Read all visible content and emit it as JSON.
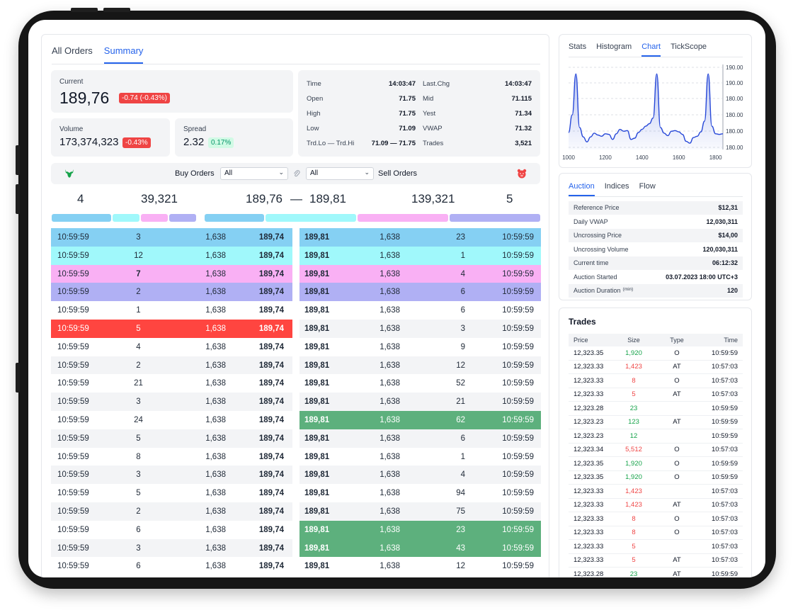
{
  "main_tabs": [
    "All Orders",
    "Summary"
  ],
  "current": {
    "label": "Current",
    "value": "189,76",
    "change": "-0.74 (-0.43%)"
  },
  "volume": {
    "label": "Volume",
    "value": "173,374,323",
    "change": "-0.43%"
  },
  "spread": {
    "label": "Spread",
    "value": "2.32",
    "change": "0.17%"
  },
  "stats_left": [
    [
      "Time",
      "14:03:47"
    ],
    [
      "Open",
      "71.75"
    ],
    [
      "High",
      "71.75"
    ],
    [
      "Low",
      "71.09"
    ],
    [
      "Trd.Lo — Trd.Hi",
      "71.09 — 71.75"
    ]
  ],
  "stats_right": [
    [
      "Last.Chg",
      "14:03:47"
    ],
    [
      "Mid",
      "71.115"
    ],
    [
      "Yest",
      "71.34"
    ],
    [
      "VWAP",
      "71.32"
    ],
    [
      "Trades",
      "3,521"
    ]
  ],
  "filters": {
    "buy_label": "Buy Orders",
    "buy_value": "All",
    "sell_value": "All",
    "sell_label": "Sell Orders"
  },
  "summary": {
    "buy_count": "4",
    "buy_qty": "39,321",
    "bid": "189,76",
    "dash": "—",
    "ask": "189,81",
    "sell_qty": "139,321",
    "sell_count": "5"
  },
  "colors": {
    "blue": "#85d0f3",
    "cyan": "#a0f8fb",
    "pink": "#f9b0f4",
    "purple": "#b0b0f4",
    "red": "#ff4540",
    "green": "#5db07d"
  },
  "buy_orders": [
    {
      "time": "10:59:59",
      "qty": "3",
      "size": "1,638",
      "price": "189,74",
      "hl": "blue"
    },
    {
      "time": "10:59:59",
      "qty": "12",
      "size": "1,638",
      "price": "189,74",
      "hl": "cyan"
    },
    {
      "time": "10:59:59",
      "qty": "7",
      "size": "1,638",
      "price": "189,74",
      "hl": "pink"
    },
    {
      "time": "10:59:59",
      "qty": "2",
      "size": "1,638",
      "price": "189,74",
      "hl": "purple"
    },
    {
      "time": "10:59:59",
      "qty": "1",
      "size": "1,638",
      "price": "189,74",
      "hl": ""
    },
    {
      "time": "10:59:59",
      "qty": "5",
      "size": "1,638",
      "price": "189,74",
      "hl": "red"
    },
    {
      "time": "10:59:59",
      "qty": "4",
      "size": "1,638",
      "price": "189,74",
      "hl": ""
    },
    {
      "time": "10:59:59",
      "qty": "2",
      "size": "1,638",
      "price": "189,74",
      "hl": ""
    },
    {
      "time": "10:59:59",
      "qty": "21",
      "size": "1,638",
      "price": "189,74",
      "hl": ""
    },
    {
      "time": "10:59:59",
      "qty": "3",
      "size": "1,638",
      "price": "189,74",
      "hl": ""
    },
    {
      "time": "10:59:59",
      "qty": "24",
      "size": "1,638",
      "price": "189,74",
      "hl": ""
    },
    {
      "time": "10:59:59",
      "qty": "5",
      "size": "1,638",
      "price": "189,74",
      "hl": ""
    },
    {
      "time": "10:59:59",
      "qty": "8",
      "size": "1,638",
      "price": "189,74",
      "hl": ""
    },
    {
      "time": "10:59:59",
      "qty": "3",
      "size": "1,638",
      "price": "189,74",
      "hl": ""
    },
    {
      "time": "10:59:59",
      "qty": "5",
      "size": "1,638",
      "price": "189,74",
      "hl": ""
    },
    {
      "time": "10:59:59",
      "qty": "2",
      "size": "1,638",
      "price": "189,74",
      "hl": ""
    },
    {
      "time": "10:59:59",
      "qty": "6",
      "size": "1,638",
      "price": "189,74",
      "hl": ""
    },
    {
      "time": "10:59:59",
      "qty": "3",
      "size": "1,638",
      "price": "189,74",
      "hl": ""
    },
    {
      "time": "10:59:59",
      "qty": "6",
      "size": "1,638",
      "price": "189,74",
      "hl": ""
    }
  ],
  "sell_orders": [
    {
      "price": "189,81",
      "size": "1,638",
      "qty": "23",
      "time": "10:59:59",
      "hl": "blue"
    },
    {
      "price": "189,81",
      "size": "1,638",
      "qty": "1",
      "time": "10:59:59",
      "hl": "cyan"
    },
    {
      "price": "189,81",
      "size": "1,638",
      "qty": "4",
      "time": "10:59:59",
      "hl": "pink"
    },
    {
      "price": "189,81",
      "size": "1,638",
      "qty": "6",
      "time": "10:59:59",
      "hl": "purple"
    },
    {
      "price": "189,81",
      "size": "1,638",
      "qty": "6",
      "time": "10:59:59",
      "hl": ""
    },
    {
      "price": "189,81",
      "size": "1,638",
      "qty": "3",
      "time": "10:59:59",
      "hl": ""
    },
    {
      "price": "189,81",
      "size": "1,638",
      "qty": "9",
      "time": "10:59:59",
      "hl": ""
    },
    {
      "price": "189,81",
      "size": "1,638",
      "qty": "12",
      "time": "10:59:59",
      "hl": ""
    },
    {
      "price": "189,81",
      "size": "1,638",
      "qty": "52",
      "time": "10:59:59",
      "hl": ""
    },
    {
      "price": "189,81",
      "size": "1,638",
      "qty": "21",
      "time": "10:59:59",
      "hl": ""
    },
    {
      "price": "189,81",
      "size": "1,638",
      "qty": "62",
      "time": "10:59:59",
      "hl": "green"
    },
    {
      "price": "189,81",
      "size": "1,638",
      "qty": "6",
      "time": "10:59:59",
      "hl": ""
    },
    {
      "price": "189,81",
      "size": "1,638",
      "qty": "1",
      "time": "10:59:59",
      "hl": ""
    },
    {
      "price": "189,81",
      "size": "1,638",
      "qty": "4",
      "time": "10:59:59",
      "hl": ""
    },
    {
      "price": "189,81",
      "size": "1,638",
      "qty": "94",
      "time": "10:59:59",
      "hl": ""
    },
    {
      "price": "189,81",
      "size": "1,638",
      "qty": "75",
      "time": "10:59:59",
      "hl": ""
    },
    {
      "price": "189,81",
      "size": "1,638",
      "qty": "23",
      "time": "10:59:59",
      "hl": "green"
    },
    {
      "price": "189,81",
      "size": "1,638",
      "qty": "43",
      "time": "10:59:59",
      "hl": "green"
    },
    {
      "price": "189,81",
      "size": "1,638",
      "qty": "12",
      "time": "10:59:59",
      "hl": ""
    }
  ],
  "chart_tabs": [
    "Stats",
    "Histogram",
    "Chart",
    "TickScope"
  ],
  "chart_data": {
    "type": "area",
    "x": [
      1000,
      1020,
      1040,
      1060,
      1080,
      1100,
      1120,
      1140,
      1160,
      1180,
      1200,
      1220,
      1240,
      1260,
      1280,
      1300,
      1320,
      1340,
      1360,
      1380,
      1400,
      1420,
      1440,
      1460,
      1480,
      1500,
      1520,
      1540,
      1560,
      1580,
      1600,
      1620,
      1640,
      1660,
      1680,
      1700,
      1720,
      1740,
      1760,
      1780,
      1800,
      1820,
      1840
    ],
    "values": [
      180.7,
      183.5,
      190.0,
      181.5,
      180.0,
      179.2,
      180.0,
      180.6,
      180.3,
      180.1,
      180.5,
      180.4,
      179.6,
      180.5,
      181.2,
      180.9,
      181.0,
      179.6,
      179.8,
      180.7,
      181.2,
      181.7,
      182.1,
      183.0,
      190.0,
      181.5,
      180.6,
      180.2,
      180.9,
      181.0,
      180.8,
      180.4,
      179.3,
      179.0,
      179.9,
      180.1,
      180.8,
      182.5,
      190.0,
      181.7,
      180.5,
      180.4,
      180.5
    ],
    "xticks": [
      "1000",
      "1200",
      "1400",
      "1600",
      "1800"
    ],
    "yticks": [
      "190.00",
      "190.00",
      "180.00",
      "180.00",
      "180.00",
      "180.00"
    ],
    "ylim": [
      178,
      191.5
    ],
    "grid": true
  },
  "auction_tabs": [
    "Auction",
    "Indices",
    "Flow"
  ],
  "auction": [
    [
      "Reference Price",
      "$12,31"
    ],
    [
      "Daily VWAP",
      "12,030,311"
    ],
    [
      "Uncrossing Price",
      "$14,00"
    ],
    [
      "Uncrossing Volume",
      "120,030,311"
    ],
    [
      "Current time",
      "06:12:32"
    ],
    [
      "Auction Started",
      "03.07.2023 18:00 UTC+3"
    ],
    [
      "Auction Duration",
      "120"
    ]
  ],
  "auction_duration_unit": "(min)",
  "trades_title": "Trades",
  "trades_head": [
    "Price",
    "Size",
    "Type",
    "Time"
  ],
  "trades": [
    {
      "price": "12,323.35",
      "size": "1,920",
      "dir": "up",
      "type": "O",
      "time": "10:59:59"
    },
    {
      "price": "12,323.33",
      "size": "1,423",
      "dir": "down",
      "type": "AT",
      "time": "10:57:03"
    },
    {
      "price": "12,323.33",
      "size": "8",
      "dir": "down",
      "type": "O",
      "time": "10:57:03"
    },
    {
      "price": "12,323.33",
      "size": "5",
      "dir": "down",
      "type": "AT",
      "time": "10:57:03"
    },
    {
      "price": "12,323.28",
      "size": "23",
      "dir": "up",
      "type": "",
      "time": "10:59:59"
    },
    {
      "price": "12,323.23",
      "size": "123",
      "dir": "up",
      "type": "AT",
      "time": "10:59:59"
    },
    {
      "price": "12,323.23",
      "size": "12",
      "dir": "up",
      "type": "",
      "time": "10:59:59"
    },
    {
      "price": "12,323.34",
      "size": "5,512",
      "dir": "down",
      "type": "O",
      "time": "10:57:03"
    },
    {
      "price": "12,323.35",
      "size": "1,920",
      "dir": "up",
      "type": "O",
      "time": "10:59:59"
    },
    {
      "price": "12,323.35",
      "size": "1,920",
      "dir": "up",
      "type": "O",
      "time": "10:59:59"
    },
    {
      "price": "12,323.33",
      "size": "1,423",
      "dir": "down",
      "type": "",
      "time": "10:57:03"
    },
    {
      "price": "12,323.33",
      "size": "1,423",
      "dir": "down",
      "type": "AT",
      "time": "10:57:03"
    },
    {
      "price": "12,323.33",
      "size": "8",
      "dir": "down",
      "type": "O",
      "time": "10:57:03"
    },
    {
      "price": "12,323.33",
      "size": "8",
      "dir": "down",
      "type": "O",
      "time": "10:57:03"
    },
    {
      "price": "12,323.33",
      "size": "5",
      "dir": "down",
      "type": "",
      "time": "10:57:03"
    },
    {
      "price": "12,323.33",
      "size": "5",
      "dir": "down",
      "type": "AT",
      "time": "10:57:03"
    },
    {
      "price": "12,323.28",
      "size": "23",
      "dir": "up",
      "type": "AT",
      "time": "10:59:59"
    }
  ]
}
